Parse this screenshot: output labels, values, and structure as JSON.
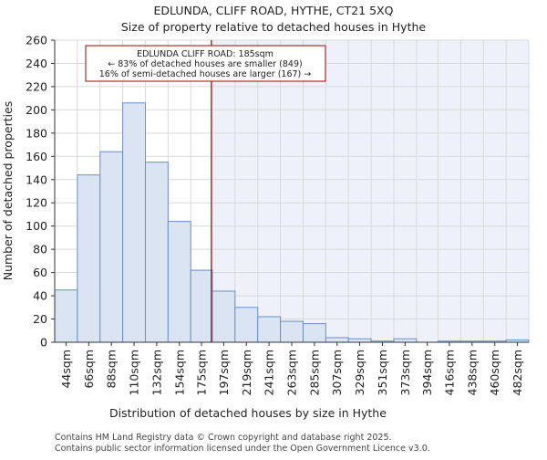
{
  "chart_data": {
    "type": "bar",
    "title": "EDLUNDA, CLIFF ROAD, HYTHE, CT21 5XQ",
    "subtitle": "Size of property relative to detached houses in Hythe",
    "xlabel": "Distribution of detached houses by size in Hythe",
    "ylabel": "Number of detached properties",
    "ylim": [
      0,
      260
    ],
    "yticks": [
      0,
      20,
      40,
      60,
      80,
      100,
      120,
      140,
      160,
      180,
      200,
      220,
      240,
      260
    ],
    "bin_edges": [
      33,
      55,
      77,
      99,
      121,
      143,
      165,
      186,
      208,
      230,
      252,
      274,
      296,
      318,
      340,
      362,
      384,
      405,
      427,
      449,
      471,
      493
    ],
    "categories": [
      "44sqm",
      "66sqm",
      "88sqm",
      "110sqm",
      "132sqm",
      "154sqm",
      "175sqm",
      "197sqm",
      "219sqm",
      "241sqm",
      "263sqm",
      "285sqm",
      "307sqm",
      "329sqm",
      "351sqm",
      "373sqm",
      "394sqm",
      "416sqm",
      "438sqm",
      "460sqm",
      "482sqm"
    ],
    "values": [
      45,
      144,
      164,
      206,
      155,
      104,
      62,
      44,
      30,
      22,
      18,
      16,
      4,
      3,
      1,
      3,
      0,
      1,
      1,
      1,
      2
    ],
    "marker": {
      "value": 185,
      "color": "#aa0000",
      "label_lines": [
        "EDLUNDA CLIFF ROAD: 185sqm",
        "← 83% of detached houses are smaller (849)",
        "16% of semi-detached houses are larger (167) →"
      ]
    },
    "colors": {
      "bar_fill": "#dae4f3",
      "bar_edge": "#6b8fcb",
      "shade_fill": "#eef1f9",
      "grid": "#d9d9d9"
    },
    "grid": true
  },
  "footer": {
    "line1": "Contains HM Land Registry data © Crown copyright and database right 2025.",
    "line2": "Contains public sector information licensed under the Open Government Licence v3.0."
  }
}
